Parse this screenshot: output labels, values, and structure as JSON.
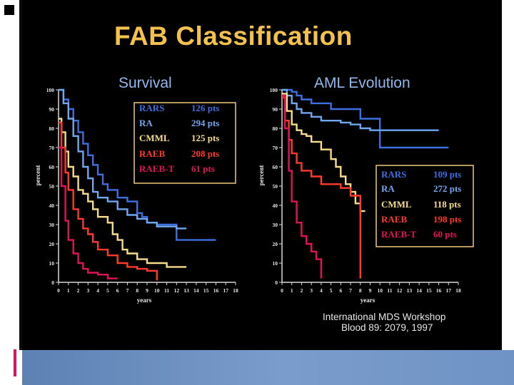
{
  "slide": {
    "title": "FAB Classification",
    "credit_line1": "International MDS Workshop",
    "credit_line2": "Blood 89: 2079, 1997"
  },
  "colors": {
    "background": "#000000",
    "title": "#f3c24d",
    "subtitle": "#8fb8ef",
    "RARS": "#3d6fe0",
    "RA": "#6fa8f0",
    "CMML": "#f6dc8c",
    "RAEB": "#ff3a2a",
    "RAEB-T": "#e0135a"
  },
  "chart_data": [
    {
      "type": "line",
      "title": "Survival",
      "xlabel": "years",
      "ylabel": "percent",
      "xlim": [
        0,
        18
      ],
      "ylim": [
        0,
        100
      ],
      "xticks": [
        0,
        1,
        2,
        3,
        4,
        5,
        6,
        7,
        8,
        9,
        10,
        11,
        12,
        13,
        14,
        15,
        16,
        17,
        18
      ],
      "yticks": [
        0,
        10,
        20,
        30,
        40,
        50,
        60,
        70,
        80,
        90,
        100
      ],
      "legend": [
        {
          "name": "RARS",
          "count": "126 pts"
        },
        {
          "name": "RA",
          "count": "294 pts"
        },
        {
          "name": "CMML",
          "count": "125 pts"
        },
        {
          "name": "RAEB",
          "count": "208 pts"
        },
        {
          "name": "RAEB-T",
          "count": "61 pts"
        }
      ],
      "series": [
        {
          "name": "RARS",
          "points": [
            [
              0,
              100
            ],
            [
              0.5,
              95
            ],
            [
              1,
              90
            ],
            [
              1.5,
              84
            ],
            [
              2,
              78
            ],
            [
              2.5,
              72
            ],
            [
              3,
              66
            ],
            [
              3.5,
              61
            ],
            [
              4,
              56
            ],
            [
              4.5,
              51
            ],
            [
              5,
              48
            ],
            [
              6,
              44
            ],
            [
              7,
              42
            ],
            [
              8,
              36
            ],
            [
              8.5,
              34
            ],
            [
              9,
              31
            ],
            [
              10,
              30
            ],
            [
              12,
              30
            ],
            [
              12,
              22
            ],
            [
              16,
              22
            ]
          ]
        },
        {
          "name": "RA",
          "points": [
            [
              0,
              100
            ],
            [
              0.5,
              93
            ],
            [
              1,
              85
            ],
            [
              1.5,
              76
            ],
            [
              2,
              68
            ],
            [
              2.5,
              60
            ],
            [
              3,
              54
            ],
            [
              3.5,
              47
            ],
            [
              4,
              44
            ],
            [
              5,
              42
            ],
            [
              6,
              38
            ],
            [
              7,
              35
            ],
            [
              8,
              33
            ],
            [
              9,
              31
            ],
            [
              10,
              29
            ],
            [
              11,
              29
            ],
            [
              12,
              28
            ],
            [
              13,
              28
            ]
          ]
        },
        {
          "name": "CMML",
          "points": [
            [
              0,
              85
            ],
            [
              0.3,
              78
            ],
            [
              0.7,
              68
            ],
            [
              1,
              60
            ],
            [
              1.5,
              55
            ],
            [
              2,
              48
            ],
            [
              2.5,
              46
            ],
            [
              3,
              42
            ],
            [
              3.5,
              38
            ],
            [
              4,
              34
            ],
            [
              5,
              31
            ],
            [
              5.5,
              25
            ],
            [
              6,
              22
            ],
            [
              6.5,
              17
            ],
            [
              7,
              15
            ],
            [
              8,
              12
            ],
            [
              9,
              10
            ],
            [
              10,
              10
            ],
            [
              11,
              8
            ],
            [
              12,
              8
            ],
            [
              13,
              8
            ]
          ]
        },
        {
          "name": "RAEB",
          "points": [
            [
              0,
              83
            ],
            [
              0.3,
              70
            ],
            [
              0.7,
              57
            ],
            [
              1,
              48
            ],
            [
              1.5,
              38
            ],
            [
              2,
              33
            ],
            [
              2.5,
              28
            ],
            [
              3,
              25
            ],
            [
              3.5,
              21
            ],
            [
              4,
              17
            ],
            [
              5,
              14
            ],
            [
              6,
              10
            ],
            [
              7,
              8
            ],
            [
              8,
              7
            ],
            [
              9,
              6
            ],
            [
              10,
              6
            ],
            [
              10,
              1
            ]
          ]
        },
        {
          "name": "RAEB-T",
          "points": [
            [
              0,
              70
            ],
            [
              0.3,
              50
            ],
            [
              0.7,
              32
            ],
            [
              1,
              22
            ],
            [
              1.5,
              15
            ],
            [
              2,
              10
            ],
            [
              2.5,
              7
            ],
            [
              3,
              5
            ],
            [
              4,
              4
            ],
            [
              5,
              4
            ],
            [
              5,
              2
            ],
            [
              6,
              2
            ]
          ]
        }
      ]
    },
    {
      "type": "line",
      "title": "AML Evolution",
      "xlabel": "years",
      "ylabel": "percent",
      "xlim": [
        0,
        18
      ],
      "ylim": [
        0,
        100
      ],
      "xticks": [
        0,
        1,
        2,
        3,
        4,
        5,
        6,
        7,
        8,
        9,
        10,
        11,
        12,
        13,
        14,
        15,
        16,
        17,
        18
      ],
      "yticks": [
        0,
        10,
        20,
        30,
        40,
        50,
        60,
        70,
        80,
        90,
        100
      ],
      "legend": [
        {
          "name": "RARS",
          "count": "109 pts"
        },
        {
          "name": "RA",
          "count": "272 pts"
        },
        {
          "name": "CMML",
          "count": "118 pts"
        },
        {
          "name": "RAEB",
          "count": "198 pts"
        },
        {
          "name": "RAEB-T",
          "count": "60 pts"
        }
      ],
      "series": [
        {
          "name": "RARS",
          "points": [
            [
              0,
              100
            ],
            [
              1,
              99
            ],
            [
              1.5,
              97
            ],
            [
              2,
              95
            ],
            [
              3,
              93
            ],
            [
              5,
              90
            ],
            [
              8,
              85
            ],
            [
              10,
              85
            ],
            [
              10,
              70
            ],
            [
              17,
              70
            ]
          ]
        },
        {
          "name": "RA",
          "points": [
            [
              0,
              100
            ],
            [
              0.5,
              97
            ],
            [
              1,
              93
            ],
            [
              1.5,
              90
            ],
            [
              2,
              88
            ],
            [
              3,
              86
            ],
            [
              4,
              84
            ],
            [
              5,
              84
            ],
            [
              6,
              83
            ],
            [
              7,
              82
            ],
            [
              8,
              80
            ],
            [
              9,
              79
            ],
            [
              12,
              79
            ],
            [
              16,
              79
            ]
          ]
        },
        {
          "name": "CMML",
          "points": [
            [
              0,
              98
            ],
            [
              0.5,
              89
            ],
            [
              1,
              82
            ],
            [
              1.5,
              79
            ],
            [
              2,
              77
            ],
            [
              2.5,
              76
            ],
            [
              3,
              73
            ],
            [
              4,
              69
            ],
            [
              5,
              64
            ],
            [
              5.5,
              60
            ],
            [
              6,
              55
            ],
            [
              6.5,
              51
            ],
            [
              7,
              47
            ],
            [
              7.5,
              41
            ],
            [
              8,
              37
            ],
            [
              8.5,
              37
            ]
          ]
        },
        {
          "name": "RAEB",
          "points": [
            [
              0,
              96
            ],
            [
              0.3,
              84
            ],
            [
              0.7,
              74
            ],
            [
              1,
              67
            ],
            [
              1.5,
              62
            ],
            [
              2,
              58
            ],
            [
              3,
              55
            ],
            [
              4,
              51
            ],
            [
              5,
              51
            ],
            [
              6,
              49
            ],
            [
              7,
              45
            ],
            [
              8,
              45
            ],
            [
              8,
              2
            ]
          ]
        },
        {
          "name": "RAEB-T",
          "points": [
            [
              0,
              97
            ],
            [
              0.3,
              80
            ],
            [
              0.7,
              58
            ],
            [
              1,
              42
            ],
            [
              1.5,
              31
            ],
            [
              2,
              24
            ],
            [
              2.5,
              20
            ],
            [
              3,
              16
            ],
            [
              3.5,
              12
            ],
            [
              4,
              10
            ],
            [
              4,
              2
            ]
          ]
        }
      ]
    }
  ]
}
